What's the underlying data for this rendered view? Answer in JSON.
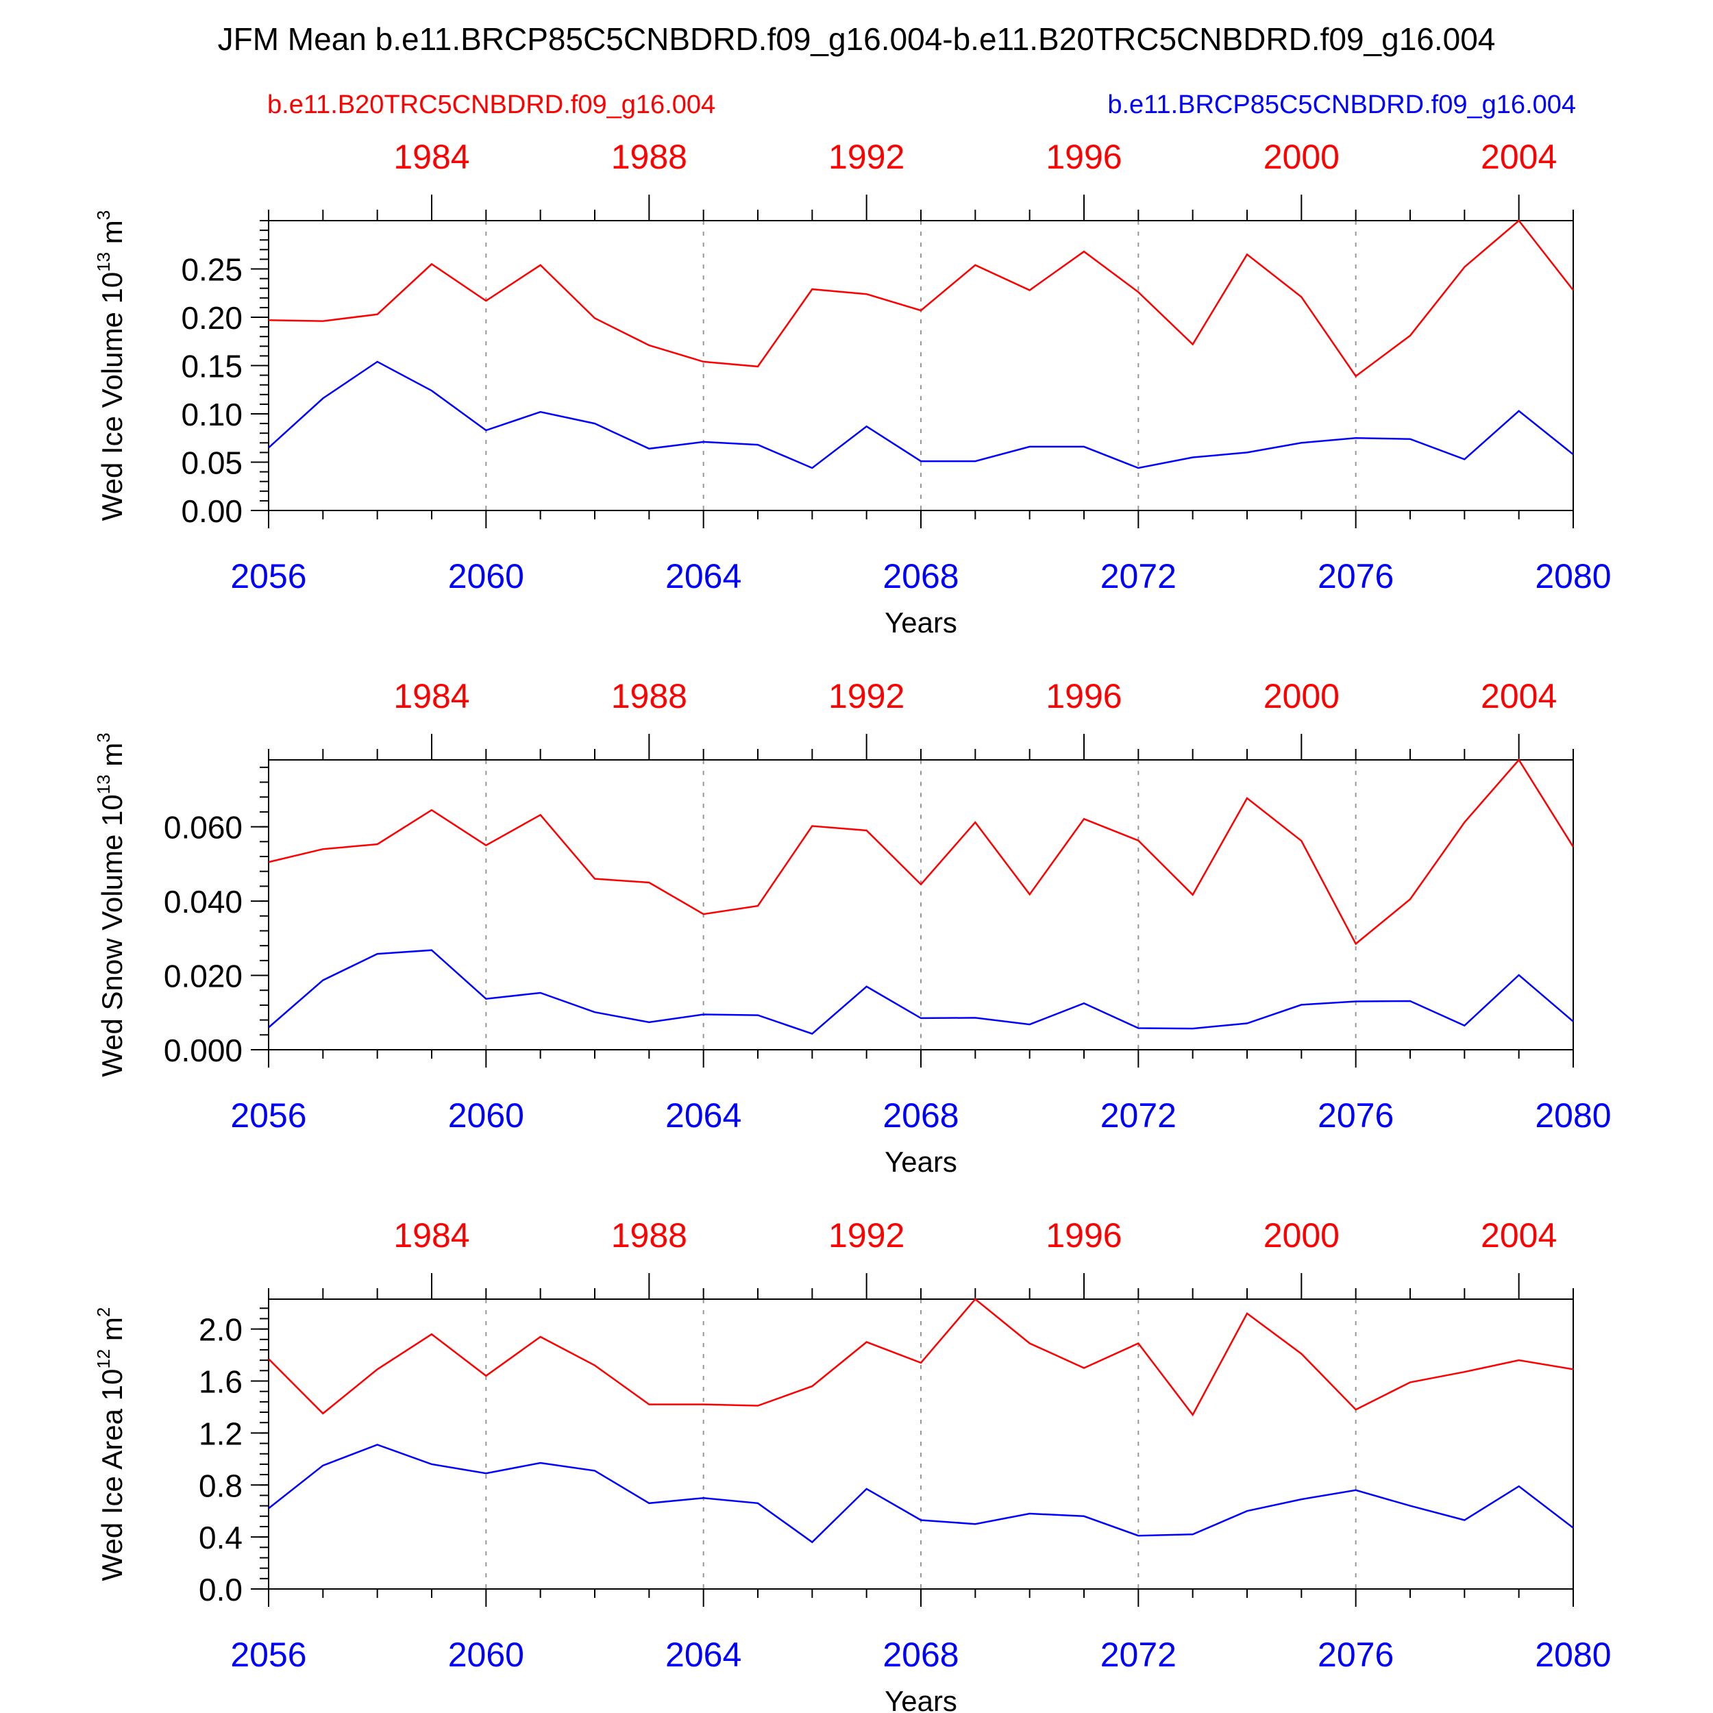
{
  "title": "JFM Mean b.e11.BRCP85C5CNBDRD.f09_g16.004-b.e11.B20TRC5CNBDRD.f09_g16.004",
  "case_left_label": "b.e11.B20TRC5CNBDRD.f09_g16.004",
  "case_right_label": "b.e11.BRCP85C5CNBDRD.f09_g16.004",
  "colors": {
    "historical": "#ff0000",
    "future": "#0000ff",
    "axis": "#000000",
    "grid": "#999999"
  },
  "chart_data": [
    {
      "type": "line",
      "xlabel": "Years",
      "ylabel_base": "Wed Ice Volume 10",
      "ylabel_exp": "13",
      "ylabel_unit": " m",
      "ylabel_unit_exp": "3",
      "x_bottom": [
        2056,
        2057,
        2058,
        2059,
        2060,
        2061,
        2062,
        2063,
        2064,
        2065,
        2066,
        2067,
        2068,
        2069,
        2070,
        2071,
        2072,
        2073,
        2074,
        2075,
        2076,
        2077,
        2078,
        2079,
        2080
      ],
      "x_top_ticks": [
        "1984",
        "1988",
        "1992",
        "1996",
        "2000",
        "2004"
      ],
      "x_bottom_ticks": [
        "2056",
        "2060",
        "2064",
        "2068",
        "2072",
        "2076",
        "2080"
      ],
      "ylim": [
        0,
        0.3
      ],
      "y_ticks": [
        "0.00",
        "0.05",
        "0.10",
        "0.15",
        "0.20",
        "0.25"
      ],
      "series": [
        {
          "role": "historical",
          "values": [
            0.197,
            0.196,
            0.203,
            0.255,
            0.217,
            0.254,
            0.199,
            0.171,
            0.154,
            0.149,
            0.229,
            0.224,
            0.207,
            0.254,
            0.228,
            0.268,
            0.226,
            0.172,
            0.265,
            0.221,
            0.139,
            0.181,
            0.252,
            0.3,
            0.228
          ]
        },
        {
          "role": "future",
          "values": [
            0.065,
            0.116,
            0.154,
            0.124,
            0.083,
            0.102,
            0.09,
            0.064,
            0.071,
            0.068,
            0.044,
            0.087,
            0.051,
            0.051,
            0.066,
            0.066,
            0.044,
            0.055,
            0.06,
            0.07,
            0.075,
            0.074,
            0.053,
            0.103,
            0.058
          ]
        }
      ]
    },
    {
      "type": "line",
      "xlabel": "Years",
      "ylabel_base": "Wed Snow Volume 10",
      "ylabel_exp": "13",
      "ylabel_unit": " m",
      "ylabel_unit_exp": "3",
      "x_bottom": [
        2056,
        2057,
        2058,
        2059,
        2060,
        2061,
        2062,
        2063,
        2064,
        2065,
        2066,
        2067,
        2068,
        2069,
        2070,
        2071,
        2072,
        2073,
        2074,
        2075,
        2076,
        2077,
        2078,
        2079,
        2080
      ],
      "x_top_ticks": [
        "1984",
        "1988",
        "1992",
        "1996",
        "2000",
        "2004"
      ],
      "x_bottom_ticks": [
        "2056",
        "2060",
        "2064",
        "2068",
        "2072",
        "2076",
        "2080"
      ],
      "ylim": [
        0,
        0.078
      ],
      "y_ticks": [
        "0.000",
        "0.020",
        "0.040",
        "0.060"
      ],
      "series": [
        {
          "role": "historical",
          "values": [
            0.0505,
            0.054,
            0.0553,
            0.0645,
            0.055,
            0.0632,
            0.046,
            0.045,
            0.0365,
            0.0387,
            0.0602,
            0.059,
            0.0445,
            0.0612,
            0.0418,
            0.0621,
            0.0563,
            0.0417,
            0.0677,
            0.0562,
            0.0285,
            0.0405,
            0.0612,
            0.078,
            0.0546
          ]
        },
        {
          "role": "future",
          "values": [
            0.006,
            0.0187,
            0.0258,
            0.0268,
            0.0137,
            0.0153,
            0.0101,
            0.0074,
            0.0095,
            0.0093,
            0.0043,
            0.017,
            0.0085,
            0.0086,
            0.0068,
            0.0125,
            0.0058,
            0.0057,
            0.0071,
            0.0121,
            0.013,
            0.0131,
            0.0065,
            0.0201,
            0.0076
          ]
        }
      ]
    },
    {
      "type": "line",
      "xlabel": "Years",
      "ylabel_base": "Wed Ice Area 10",
      "ylabel_exp": "12",
      "ylabel_unit": " m",
      "ylabel_unit_exp": "2",
      "x_bottom": [
        2056,
        2057,
        2058,
        2059,
        2060,
        2061,
        2062,
        2063,
        2064,
        2065,
        2066,
        2067,
        2068,
        2069,
        2070,
        2071,
        2072,
        2073,
        2074,
        2075,
        2076,
        2077,
        2078,
        2079,
        2080
      ],
      "x_top_ticks": [
        "1984",
        "1988",
        "1992",
        "1996",
        "2000",
        "2004"
      ],
      "x_bottom_ticks": [
        "2056",
        "2060",
        "2064",
        "2068",
        "2072",
        "2076",
        "2080"
      ],
      "ylim": [
        0,
        2.23
      ],
      "y_ticks": [
        "0.0",
        "0.4",
        "0.8",
        "1.2",
        "1.6",
        "2.0"
      ],
      "series": [
        {
          "role": "historical",
          "values": [
            1.77,
            1.35,
            1.69,
            1.96,
            1.64,
            1.94,
            1.72,
            1.42,
            1.42,
            1.41,
            1.56,
            1.9,
            1.74,
            2.23,
            1.89,
            1.7,
            1.89,
            1.34,
            2.12,
            1.81,
            1.38,
            1.59,
            1.67,
            1.76,
            1.69
          ]
        },
        {
          "role": "future",
          "values": [
            0.62,
            0.95,
            1.11,
            0.96,
            0.89,
            0.97,
            0.91,
            0.66,
            0.7,
            0.66,
            0.36,
            0.77,
            0.53,
            0.5,
            0.58,
            0.56,
            0.41,
            0.42,
            0.6,
            0.69,
            0.76,
            0.64,
            0.53,
            0.79,
            0.47
          ]
        }
      ]
    }
  ]
}
